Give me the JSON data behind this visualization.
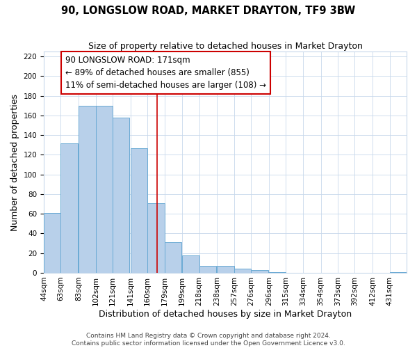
{
  "title": "90, LONGSLOW ROAD, MARKET DRAYTON, TF9 3BW",
  "subtitle": "Size of property relative to detached houses in Market Drayton",
  "xlabel": "Distribution of detached houses by size in Market Drayton",
  "ylabel": "Number of detached properties",
  "bin_labels": [
    "44sqm",
    "63sqm",
    "83sqm",
    "102sqm",
    "121sqm",
    "141sqm",
    "160sqm",
    "179sqm",
    "199sqm",
    "218sqm",
    "238sqm",
    "257sqm",
    "276sqm",
    "296sqm",
    "315sqm",
    "334sqm",
    "354sqm",
    "373sqm",
    "392sqm",
    "412sqm",
    "431sqm"
  ],
  "bar_heights": [
    61,
    132,
    170,
    170,
    158,
    127,
    71,
    31,
    18,
    7,
    7,
    4,
    3,
    1,
    0,
    0,
    0,
    0,
    0,
    0,
    1
  ],
  "bar_color": "#b8d0ea",
  "bar_edgecolor": "#6aaad4",
  "bar_left_edges": [
    44,
    63,
    83,
    102,
    121,
    141,
    160,
    179,
    199,
    218,
    238,
    257,
    276,
    296,
    315,
    334,
    354,
    373,
    392,
    412,
    431
  ],
  "bin_width": 19,
  "property_value": 171,
  "vline_color": "#cc0000",
  "annotation_line1": "90 LONGSLOW ROAD: 171sqm",
  "annotation_line2": "← 89% of detached houses are smaller (855)",
  "annotation_line3": "11% of semi-detached houses are larger (108) →",
  "annotation_box_facecolor": "#ffffff",
  "annotation_box_edgecolor": "#cc0000",
  "ylim": [
    0,
    225
  ],
  "yticks": [
    0,
    20,
    40,
    60,
    80,
    100,
    120,
    140,
    160,
    180,
    200,
    220
  ],
  "footer_line1": "Contains HM Land Registry data © Crown copyright and database right 2024.",
  "footer_line2": "Contains public sector information licensed under the Open Government Licence v3.0.",
  "background_color": "#ffffff",
  "grid_color": "#c8d8eb",
  "title_fontsize": 10.5,
  "subtitle_fontsize": 9,
  "axis_label_fontsize": 9,
  "tick_fontsize": 7.5,
  "annotation_fontsize": 8.5,
  "footer_fontsize": 6.5
}
